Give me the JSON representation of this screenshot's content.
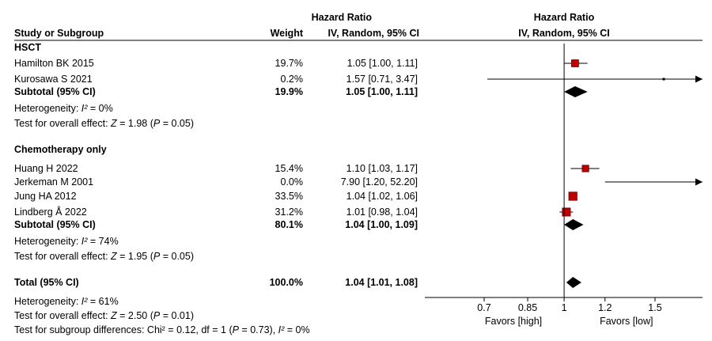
{
  "header": {
    "col_study": "Study or Subgroup",
    "col_weight": "Weight",
    "hr_title": "Hazard Ratio",
    "hr_method": "IV, Random, 95% CI",
    "plot_title": "Hazard Ratio",
    "plot_method": "IV, Random, 95% CI"
  },
  "chart_data": {
    "type": "forest",
    "x_scale": "log",
    "x_ticks": [
      0.7,
      0.85,
      1,
      1.2,
      1.5
    ],
    "x_tick_labels": [
      "0.7",
      "0.85",
      "1",
      "1.2",
      "1.5"
    ],
    "null_value": 1,
    "favors_left": "Favors [high]",
    "favors_right": "Favors [low]",
    "colors": {
      "study_marker": "#c00000",
      "summary": "#000000",
      "line": "#000000"
    },
    "groups": [
      {
        "name": "HSCT",
        "studies": [
          {
            "label": "Hamilton BK 2015",
            "weight": "19.7%",
            "ci_text": "1.05 [1.00, 1.11]",
            "hr": 1.05,
            "lower": 1.0,
            "upper": 1.11
          },
          {
            "label": "Kurosawa S 2021",
            "weight": "0.2%",
            "ci_text": "1.57 [0.71, 3.47]",
            "hr": 1.57,
            "lower": 0.71,
            "upper": 3.47
          }
        ],
        "subtotal": {
          "label": "Subtotal (95% CI)",
          "weight": "19.9%",
          "ci_text": "1.05 [1.00, 1.11]",
          "hr": 1.05,
          "lower": 1.0,
          "upper": 1.11
        },
        "heterogeneity": {
          "prefix": "Heterogeneity: ",
          "stat": "I²",
          "value": " = 0%"
        },
        "overall": {
          "prefix": "Test for overall effect: ",
          "z": "Z",
          "z_value": " = 1.98 (",
          "p": "P",
          "p_value": " = 0.05)"
        }
      },
      {
        "name": "Chemotherapy only",
        "studies": [
          {
            "label": "Huang H 2022",
            "weight": "15.4%",
            "ci_text": "1.10 [1.03, 1.17]",
            "hr": 1.1,
            "lower": 1.03,
            "upper": 1.17
          },
          {
            "label": "Jerkeman M 2001",
            "weight": "0.0%",
            "ci_text": "7.90 [1.20, 52.20]",
            "hr": 7.9,
            "lower": 1.2,
            "upper": 52.2
          },
          {
            "label": "Jung HA 2012",
            "weight": "33.5%",
            "ci_text": "1.04 [1.02, 1.06]",
            "hr": 1.04,
            "lower": 1.02,
            "upper": 1.06
          },
          {
            "label": "Lindberg Å 2022",
            "weight": "31.2%",
            "ci_text": "1.01 [0.98, 1.04]",
            "hr": 1.01,
            "lower": 0.98,
            "upper": 1.04
          }
        ],
        "subtotal": {
          "label": "Subtotal (95% CI)",
          "weight": "80.1%",
          "ci_text": "1.04 [1.00, 1.09]",
          "hr": 1.04,
          "lower": 1.0,
          "upper": 1.09
        },
        "heterogeneity": {
          "prefix": "Heterogeneity: ",
          "stat": "I²",
          "value": " = 74%"
        },
        "overall": {
          "prefix": "Test for overall effect: ",
          "z": "Z",
          "z_value": " = 1.95 (",
          "p": "P",
          "p_value": " = 0.05)"
        }
      }
    ],
    "total": {
      "label": "Total (95% CI)",
      "weight": "100.0%",
      "ci_text": "1.04 [1.01, 1.08]",
      "hr": 1.04,
      "lower": 1.01,
      "upper": 1.08,
      "heterogeneity": {
        "prefix": "Heterogeneity: ",
        "stat": "I²",
        "value": " = 61%"
      },
      "overall": {
        "prefix": "Test for overall effect: ",
        "z": "Z",
        "z_value": " = 2.50 (",
        "p": "P",
        "p_value": " = 0.01)"
      },
      "subgroup_diff": {
        "prefix": "Test for subgroup differences: Chi² = 0.12, df = 1 (",
        "p": "P",
        "mid": " = 0.73), ",
        "stat": "I²",
        "value": " = 0%"
      }
    }
  }
}
